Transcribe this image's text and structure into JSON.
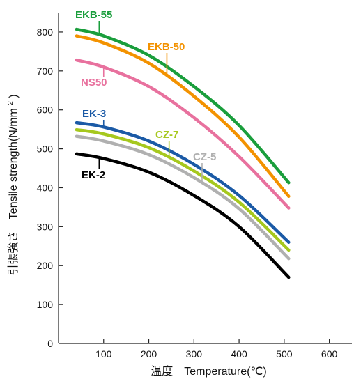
{
  "chart_data": {
    "type": "line",
    "xlabel": "温度　Temperature(℃)",
    "ylabel_jp": "引張強さ",
    "ylabel_en": "Tensile strength(N/mm",
    "ylabel_sup": "2",
    "ylabel_close": ")",
    "xlim": [
      0,
      650
    ],
    "ylim": [
      0,
      850
    ],
    "x_ticks": [
      100,
      200,
      300,
      400,
      500,
      600
    ],
    "y_ticks": [
      100,
      200,
      300,
      400,
      500,
      600,
      700,
      800
    ],
    "origin_label": "0",
    "grid": false,
    "series": [
      {
        "name": "EKB-55",
        "color": "#1a9e3c",
        "x": [
          40,
          100,
          200,
          300,
          400,
          510
        ],
        "y": [
          807,
          790,
          740,
          660,
          560,
          413
        ]
      },
      {
        "name": "EKB-50",
        "color": "#f39200",
        "x": [
          40,
          100,
          200,
          300,
          400,
          510
        ],
        "y": [
          790,
          772,
          720,
          635,
          530,
          378
        ]
      },
      {
        "name": "NS50",
        "color": "#e8719e",
        "x": [
          40,
          100,
          200,
          300,
          400,
          510
        ],
        "y": [
          728,
          710,
          660,
          580,
          480,
          348
        ]
      },
      {
        "name": "EK-3",
        "color": "#1b5aa6",
        "x": [
          40,
          100,
          200,
          300,
          400,
          510
        ],
        "y": [
          567,
          556,
          520,
          460,
          380,
          260
        ]
      },
      {
        "name": "CZ-7",
        "color": "#a6c81e",
        "x": [
          40,
          100,
          200,
          300,
          400,
          510
        ],
        "y": [
          549,
          538,
          503,
          443,
          363,
          240
        ]
      },
      {
        "name": "CZ-5",
        "color": "#b0b0b0",
        "x": [
          40,
          100,
          200,
          300,
          400,
          510
        ],
        "y": [
          532,
          520,
          485,
          426,
          346,
          218
        ]
      },
      {
        "name": "EK-2",
        "color": "#000000",
        "x": [
          40,
          100,
          200,
          300,
          400,
          510
        ],
        "y": [
          487,
          475,
          440,
          380,
          300,
          170
        ]
      }
    ]
  }
}
